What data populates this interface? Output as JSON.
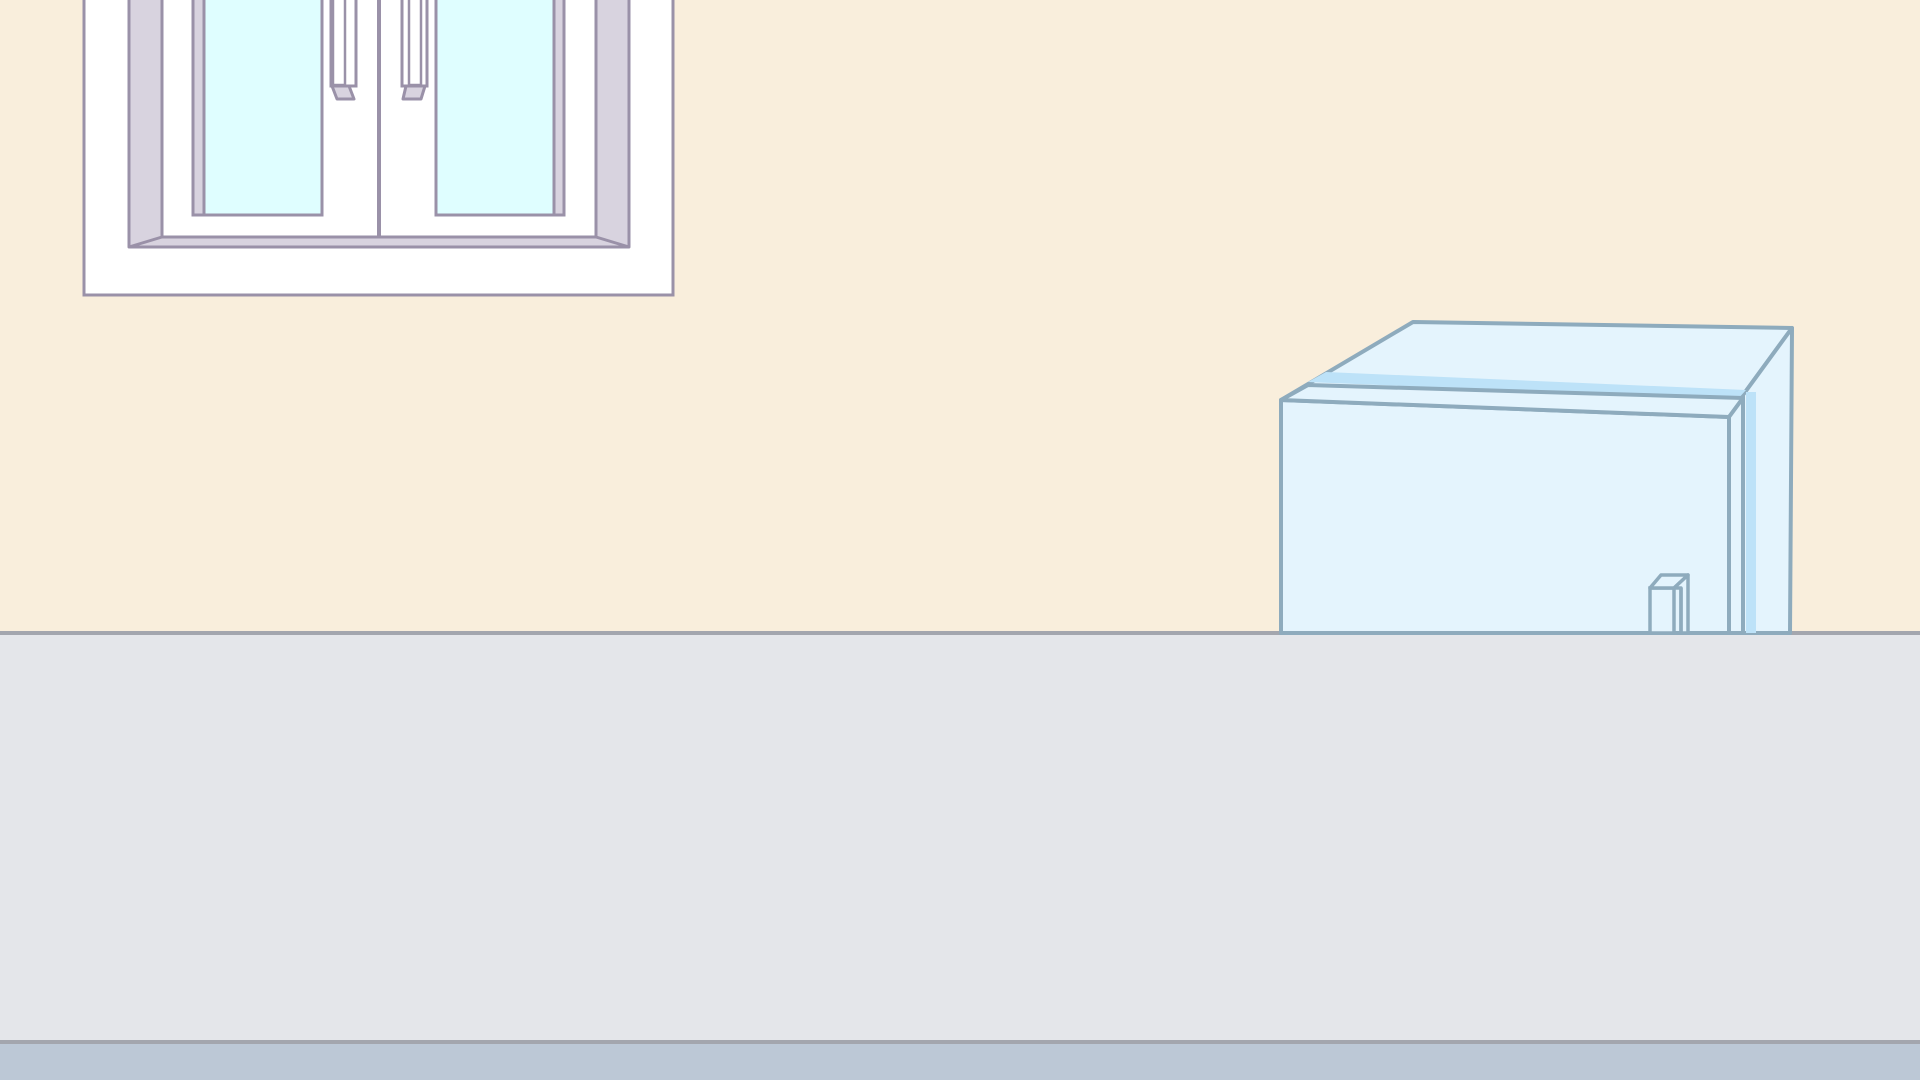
{
  "scene": {
    "objects": [
      "window-icon",
      "refrigerator-icon"
    ],
    "colors": {
      "wall": "#F9EEDC",
      "floor": "#E4E6EA",
      "baseboard": "#BCC8D6",
      "divider_line": "#A3A6AE",
      "window_frame_fill": "#FFFFFF",
      "window_recess": "#D8D3DF",
      "window_outline": "#9A91A8",
      "window_glass": "#DFFEFF",
      "fridge_body": "#E4F4FD",
      "fridge_highlight": "#BDE2F8",
      "fridge_outline": "#8EABBD"
    }
  }
}
